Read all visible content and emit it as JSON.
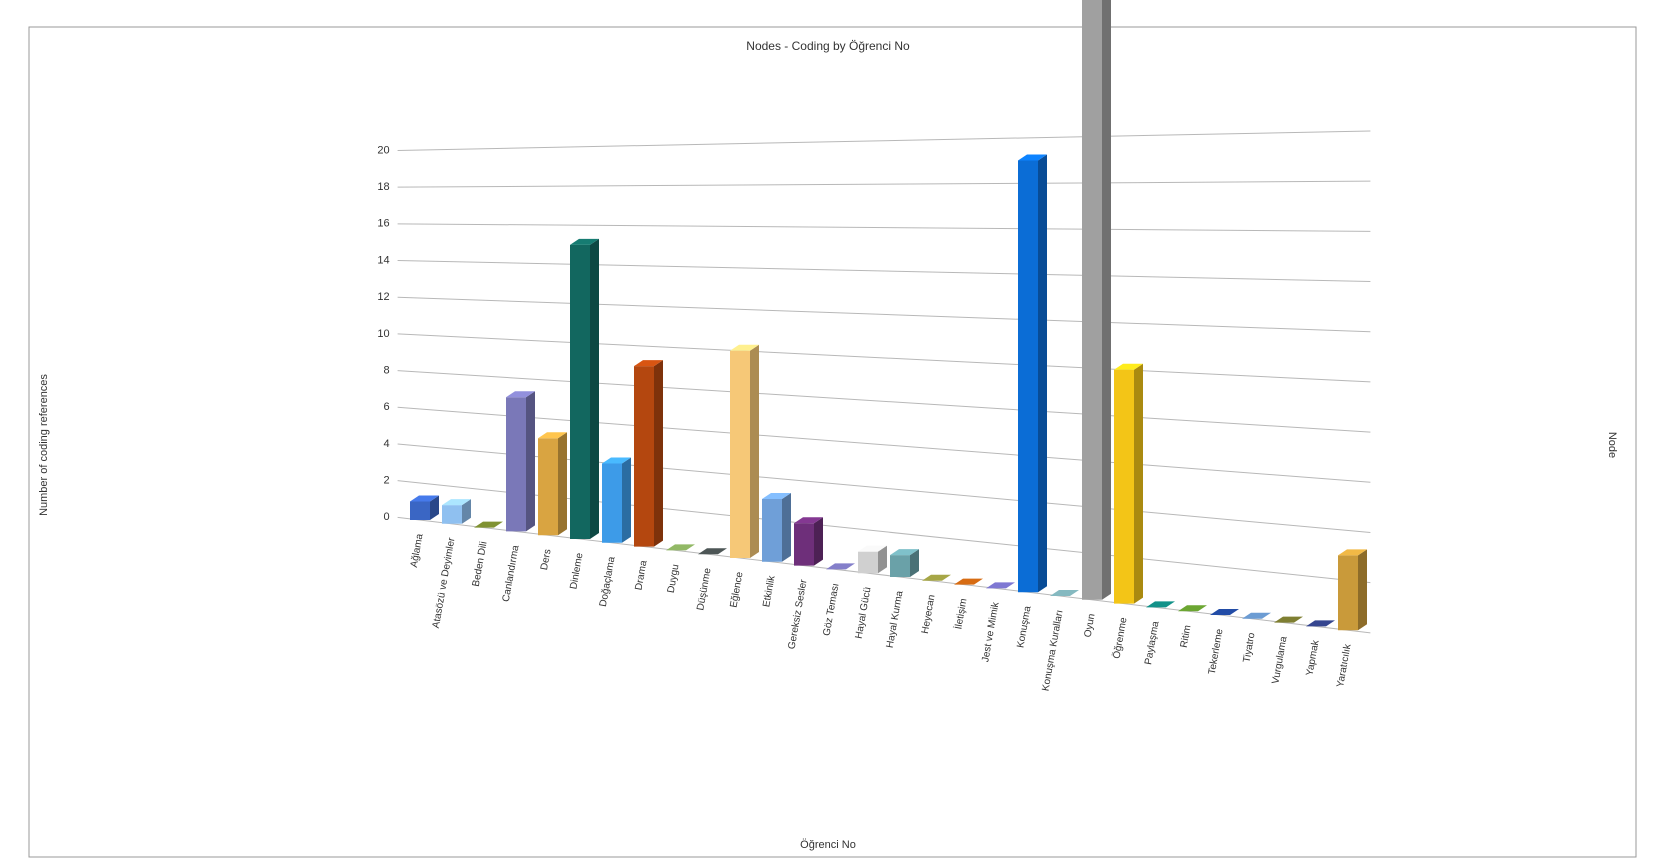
{
  "chart_data": {
    "type": "bar3d",
    "title": "Nodes - Coding by Öğrenci No",
    "x_label": "Öğrenci No",
    "y_label": "Number of coding references",
    "z_label": "Node",
    "categories": [
      "Ağlama",
      "Atasözü ve Deyimler",
      "Beden Dili",
      "Canlandırma",
      "Ders",
      "Dinleme",
      "Doğaçlama",
      "Drama",
      "Duygu",
      "Düşünme",
      "Eğlence",
      "Etkinlik",
      "Gereksiz Sesler",
      "Göz Teması",
      "Hayal Gücü",
      "Hayal Kurma",
      "Heyecan",
      "İletişim",
      "Jest ve Mimik",
      "Konuşma",
      "Konuşma Kuralları",
      "Oyun",
      "Öğrenme",
      "Paylaşma",
      "Ritim",
      "Tekerleme",
      "Tiyatro",
      "Vurgulama",
      "Yapmak",
      "Yaratıcılık"
    ],
    "values": [
      1,
      1,
      0,
      7,
      5,
      15,
      4,
      9,
      0,
      0,
      10,
      3,
      2,
      0,
      1,
      1,
      0,
      0,
      0,
      19,
      0,
      26,
      10,
      0,
      0,
      0,
      0,
      0,
      0,
      3
    ],
    "colors": [
      "#3a66c4",
      "#8fc0f0",
      "#6b7a2a",
      "#7a78b8",
      "#d9a441",
      "#12675f",
      "#3d9be8",
      "#b4470f",
      "#7a9a55",
      "#404848",
      "#f6c877",
      "#6f9fd8",
      "#6e2f7a",
      "#6e6aa8",
      "#d0d0d0",
      "#6aa1a8",
      "#8a8a3a",
      "#b35a10",
      "#6a64b0",
      "#0b6dd6",
      "#6f9aa0",
      "#a0a0a0",
      "#f3c517",
      "#0f7a72",
      "#5a8a2a",
      "#1c3f8a",
      "#5a82b0",
      "#6a6a2a",
      "#2c3a78",
      "#c99a3a"
    ],
    "ylim": [
      0,
      26
    ],
    "yticks": [
      0,
      2,
      4,
      6,
      8,
      10,
      12,
      14,
      16,
      18,
      20
    ],
    "grid": true
  }
}
